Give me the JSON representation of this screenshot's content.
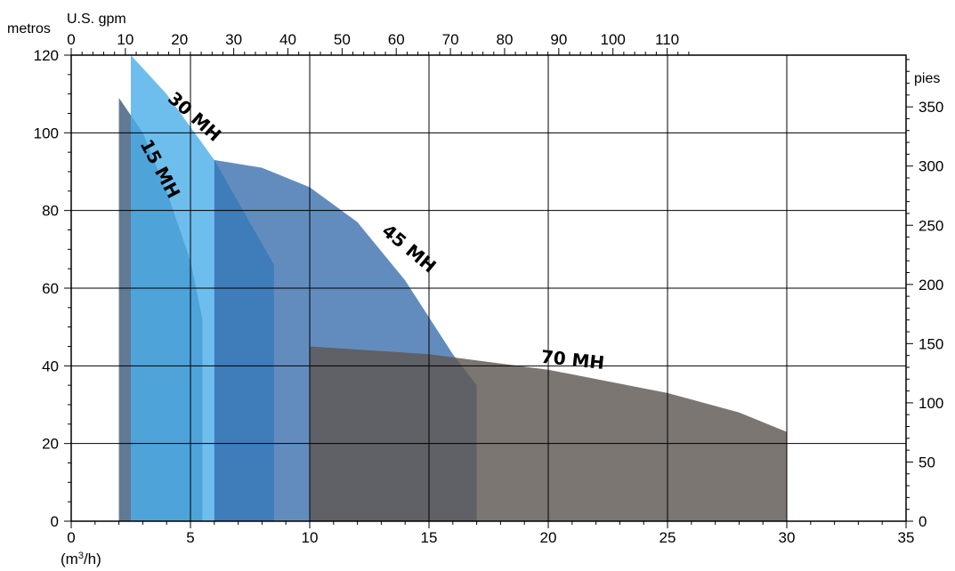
{
  "chart_data": {
    "type": "area",
    "x_bottom": {
      "label": "(m³/h)",
      "label_base": "(m",
      "label_sup": "3",
      "label_tail": "/h)",
      "ticks": [
        0,
        5,
        10,
        15,
        20,
        25,
        30,
        35
      ],
      "range": [
        0,
        35
      ]
    },
    "x_top": {
      "label": "U.S. gpm",
      "ticks": [
        0,
        10,
        20,
        30,
        40,
        50,
        60,
        70,
        80,
        90,
        100,
        110
      ]
    },
    "y_left": {
      "label": "metros",
      "ticks": [
        0,
        20,
        40,
        60,
        80,
        100,
        120
      ],
      "range": [
        0,
        120
      ]
    },
    "y_right": {
      "label": "pies",
      "ticks": [
        0,
        50,
        100,
        150,
        200,
        250,
        300,
        350
      ]
    },
    "grid": true,
    "series": [
      {
        "name": "15 MH",
        "color": "#2c4d70",
        "opacity": 0.75,
        "points": [
          [
            2,
            0
          ],
          [
            2,
            109
          ],
          [
            3,
            100
          ],
          [
            4,
            85
          ],
          [
            5,
            67
          ],
          [
            5.5,
            52
          ],
          [
            5.5,
            0
          ]
        ]
      },
      {
        "name": "30 MH",
        "color": "#4aaee8",
        "opacity": 0.8,
        "points": [
          [
            2.5,
            0
          ],
          [
            2.5,
            120
          ],
          [
            4,
            110
          ],
          [
            6,
            93
          ],
          [
            8.5,
            66
          ],
          [
            8.5,
            0
          ]
        ]
      },
      {
        "name": "45 MH",
        "color": "#2f65a8",
        "opacity": 0.75,
        "points": [
          [
            6,
            0
          ],
          [
            6,
            93
          ],
          [
            8,
            91
          ],
          [
            10,
            86
          ],
          [
            12,
            77
          ],
          [
            14,
            62
          ],
          [
            16,
            43
          ],
          [
            17,
            35
          ],
          [
            17,
            0
          ]
        ]
      },
      {
        "name": "70 MH",
        "color": "#5e5853",
        "opacity": 0.82,
        "points": [
          [
            10,
            0
          ],
          [
            10,
            45
          ],
          [
            15,
            43
          ],
          [
            20,
            39
          ],
          [
            25,
            33
          ],
          [
            28,
            28
          ],
          [
            30,
            23
          ],
          [
            30,
            0
          ]
        ]
      }
    ]
  }
}
